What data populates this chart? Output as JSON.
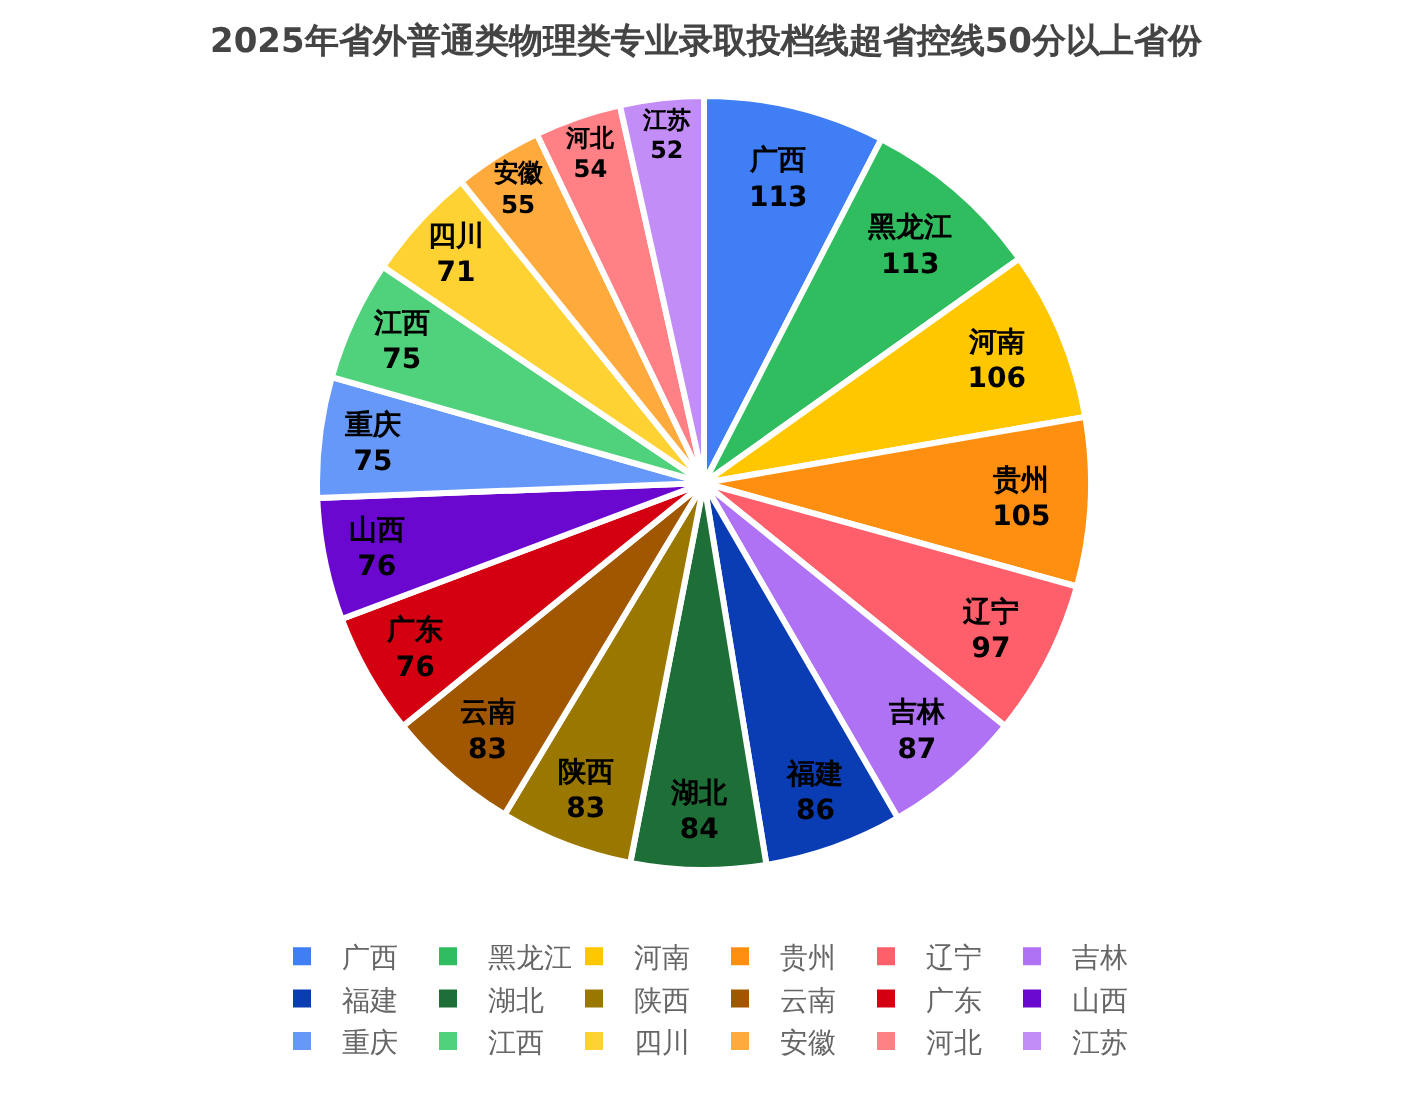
{
  "chart_data": {
    "type": "pie",
    "title": "2025年省外普通类物理类专业录取投档线超省控线50分以上省份",
    "categories": [
      "广西",
      "黑龙江",
      "河南",
      "贵州",
      "辽宁",
      "吉林",
      "福建",
      "湖北",
      "陕西",
      "云南",
      "广东",
      "山西",
      "重庆",
      "江西",
      "四川",
      "安徽",
      "河北",
      "江苏"
    ],
    "values": [
      113,
      113,
      106,
      105,
      97,
      87,
      86,
      84,
      83,
      83,
      76,
      76,
      75,
      75,
      71,
      55,
      54,
      52
    ],
    "colors": [
      "#3f7ef5",
      "#2fbd60",
      "#ffc700",
      "#ff8f10",
      "#ff5e6b",
      "#b072f5",
      "#0a3db3",
      "#1e6e38",
      "#9a7800",
      "#a05700",
      "#d40012",
      "#6a08d0",
      "#6598f8",
      "#50d27c",
      "#ffd233",
      "#ffaa3c",
      "#ff8085",
      "#c38df8"
    ],
    "data_labels": true,
    "legend": "bottom"
  }
}
